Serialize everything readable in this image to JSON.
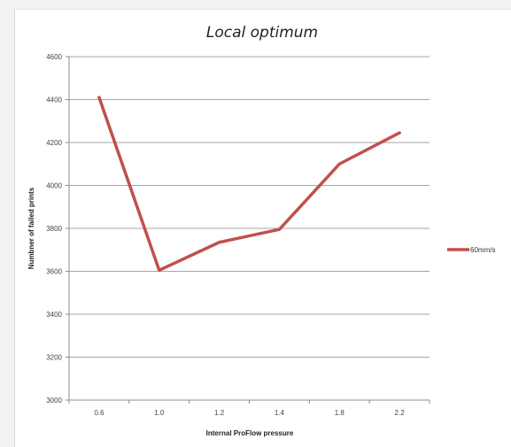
{
  "chart_data": {
    "type": "line",
    "title": "Local optimum",
    "xlabel": "Internal ProFlow pressure",
    "ylabel": "Numbner of failed prints",
    "categories": [
      "0.6",
      "1.0",
      "1.2",
      "1.4",
      "1.8",
      "2.2"
    ],
    "series": [
      {
        "name": "60mm/s",
        "values": [
          4410,
          3605,
          3735,
          3795,
          4100,
          4245
        ],
        "color": "#c0504d"
      }
    ],
    "ylim": [
      3000,
      4600
    ],
    "yticks": [
      3000,
      3200,
      3400,
      3600,
      3800,
      4000,
      4200,
      4400,
      4600
    ],
    "grid": true,
    "legend": "right"
  }
}
